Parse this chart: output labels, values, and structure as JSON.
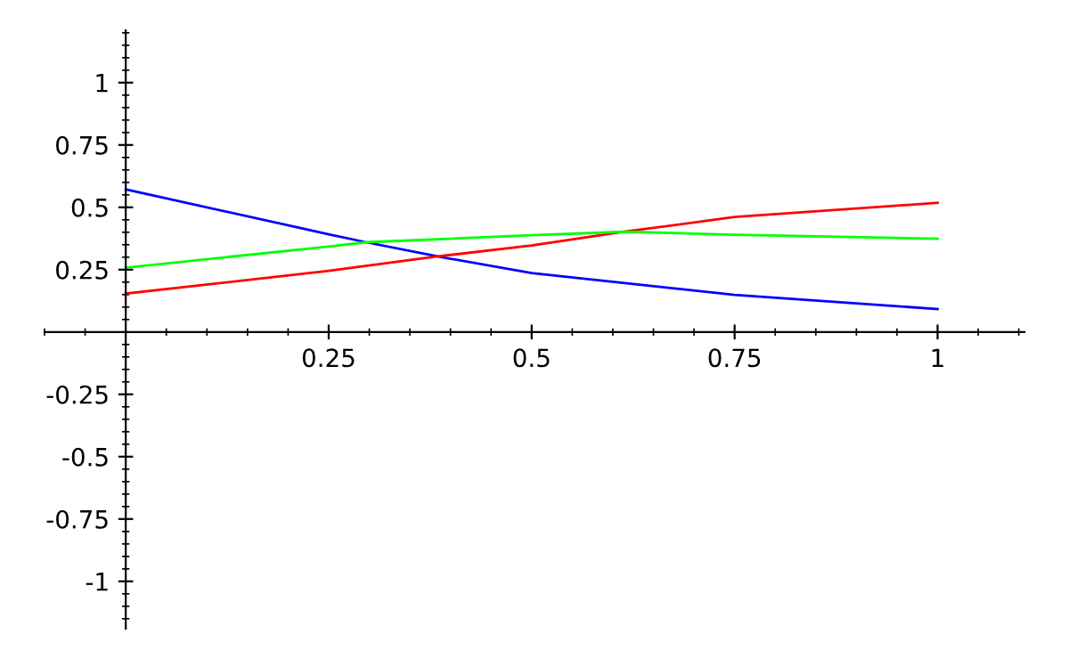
{
  "chart_data": {
    "type": "line",
    "grid": false,
    "legend": false,
    "marker": "none",
    "line_style": "solid",
    "xlim": [
      -0.1,
      1.107
    ],
    "ylim": [
      -1.19,
      1.21
    ],
    "xticks": [
      0.25,
      0.5,
      0.75,
      1
    ],
    "yticks": [
      -1,
      -0.75,
      -0.5,
      -0.25,
      0.25,
      0.5,
      0.75,
      1
    ],
    "series": [
      {
        "color": "#0000ff",
        "x": [
          0,
          0.25,
          0.296,
          0.384,
          0.5,
          0.75,
          1
        ],
        "values": [
          0.572,
          0.392,
          0.36,
          0.303,
          0.236,
          0.149,
          0.092
        ]
      },
      {
        "color": "#ff0000",
        "x": [
          0,
          0.25,
          0.384,
          0.5,
          0.614,
          0.75,
          1
        ],
        "values": [
          0.154,
          0.245,
          0.303,
          0.347,
          0.402,
          0.461,
          0.518
        ]
      },
      {
        "color": "#00ff00",
        "x": [
          0,
          0.25,
          0.296,
          0.5,
          0.614,
          0.75,
          1
        ],
        "values": [
          0.258,
          0.343,
          0.36,
          0.388,
          0.402,
          0.39,
          0.374
        ]
      }
    ]
  }
}
